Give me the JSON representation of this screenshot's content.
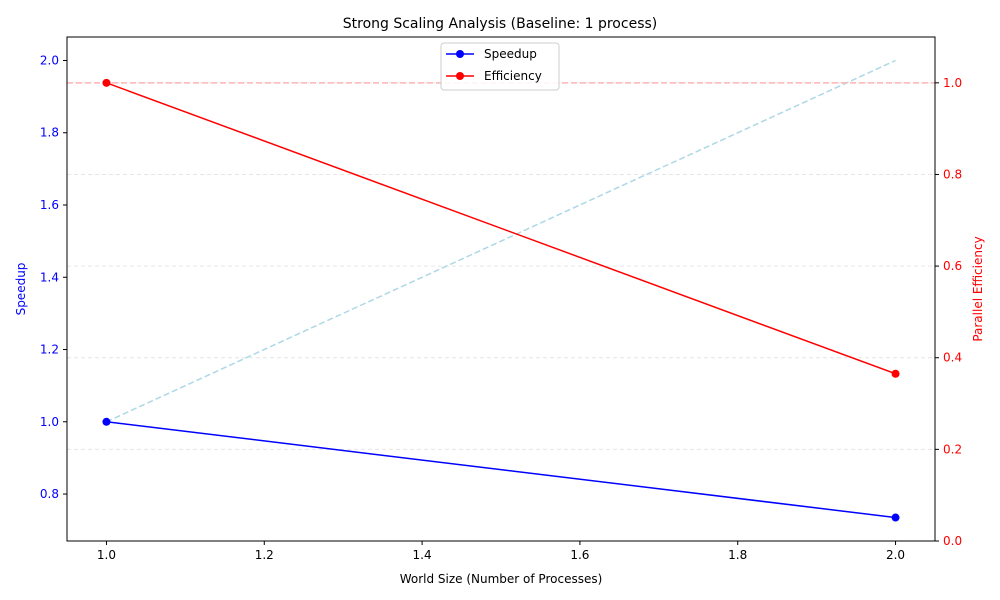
{
  "chart_data": {
    "type": "line",
    "title": "Strong Scaling Analysis (Baseline: 1 process)",
    "xlabel": "World Size (Number of Processes)",
    "ylabel_left": "Speedup",
    "ylabel_right": "Parallel Efficiency",
    "xlim": [
      0.95,
      2.05
    ],
    "ylim_left": [
      0.67,
      2.065
    ],
    "ylim_right": [
      0.0,
      1.1
    ],
    "x_ticks": [
      1.0,
      1.2,
      1.4,
      1.6,
      1.8,
      2.0
    ],
    "x_tick_labels": [
      "1.0",
      "1.2",
      "1.4",
      "1.6",
      "1.8",
      "2.0"
    ],
    "y_left_ticks": [
      0.8,
      1.0,
      1.2,
      1.4,
      1.6,
      1.8,
      2.0
    ],
    "y_left_tick_labels": [
      "0.8",
      "1.0",
      "1.2",
      "1.4",
      "1.6",
      "1.8",
      "2.0"
    ],
    "y_right_ticks": [
      0.0,
      0.2,
      0.4,
      0.6,
      0.8,
      1.0
    ],
    "y_right_tick_labels": [
      "0.0",
      "0.2",
      "0.4",
      "0.6",
      "0.8",
      "1.0"
    ],
    "grid": true,
    "legend_position": "top-center",
    "series": [
      {
        "name": "Speedup",
        "axis": "left",
        "x": [
          1,
          2
        ],
        "y": [
          1.0,
          0.735
        ],
        "color": "#0000ff",
        "marker": "circle"
      },
      {
        "name": "Efficiency",
        "axis": "right",
        "x": [
          1,
          2
        ],
        "y": [
          1.0,
          0.365
        ],
        "color": "#ff0000",
        "marker": "circle"
      }
    ],
    "reference_lines": [
      {
        "axis": "left",
        "x": [
          1,
          2
        ],
        "y": [
          1.0,
          2.0
        ],
        "color": "#add8e6",
        "style": "dashed"
      },
      {
        "axis": "right",
        "y": 1.0,
        "color": "#ffb3b3",
        "style": "dashed"
      }
    ],
    "colors": {
      "left_axis": "#0000ff",
      "right_axis": "#ff0000",
      "grid": "#e6e6e6"
    }
  }
}
